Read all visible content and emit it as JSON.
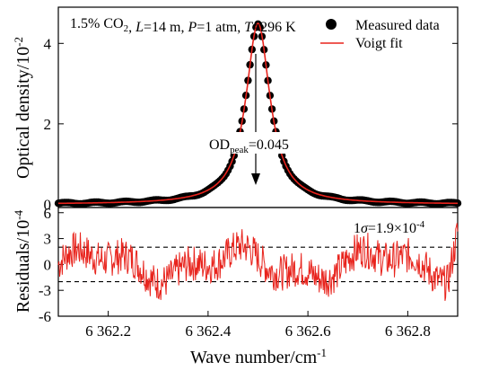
{
  "chart_data": [
    {
      "type": "scatter",
      "panel": "top",
      "annotation": {
        "prefix": "1.5% CO",
        "co2_sub": "2",
        "l_label": "L",
        "l_value": "=14 m, ",
        "p_label": "P",
        "p_value": "=1 atm, ",
        "t_label": "T",
        "t_value": "=296 K"
      },
      "ylabel_main": "Optical density/10",
      "ylabel_exp": "-2",
      "yticks": [
        0,
        2,
        4
      ],
      "ylim": [
        -0.08,
        4.9
      ],
      "xlim": [
        6362.1,
        6362.9
      ],
      "grid": false,
      "legend_position": "top-right",
      "series": [
        {
          "name": "Measured data",
          "style": "black-circles"
        },
        {
          "name": "Voigt fit",
          "style": "red-line"
        }
      ],
      "profile": {
        "center": 6362.5,
        "peak": 4.5,
        "width": 0.075
      },
      "peak_label": {
        "text": "OD",
        "sub": "peak",
        "value": "=0.045"
      },
      "colors": {
        "data": "#000000",
        "fit": "#e8231c"
      }
    },
    {
      "type": "line",
      "panel": "bottom",
      "ylabel_main": "Residuals/10",
      "ylabel_exp": "-4",
      "yticks": [
        -6,
        -3,
        0,
        3,
        6
      ],
      "ylim": [
        -6,
        6.6
      ],
      "xlim": [
        6362.1,
        6362.9
      ],
      "sigma_text": {
        "prefix": "1",
        "sym": "σ",
        "value": "=1.9×10",
        "exp": "-4"
      },
      "sigma_band": [
        2,
        -2
      ],
      "xticks": [
        6362.2,
        6362.4,
        6362.6,
        6362.8
      ],
      "xtick_labels": [
        "6 362.2",
        "6 362.4",
        "6 362.6",
        "6 362.8"
      ],
      "xlabel_main": "Wave number/cm",
      "xlabel_exp": "-1",
      "colors": {
        "residual": "#e8231c"
      }
    }
  ]
}
